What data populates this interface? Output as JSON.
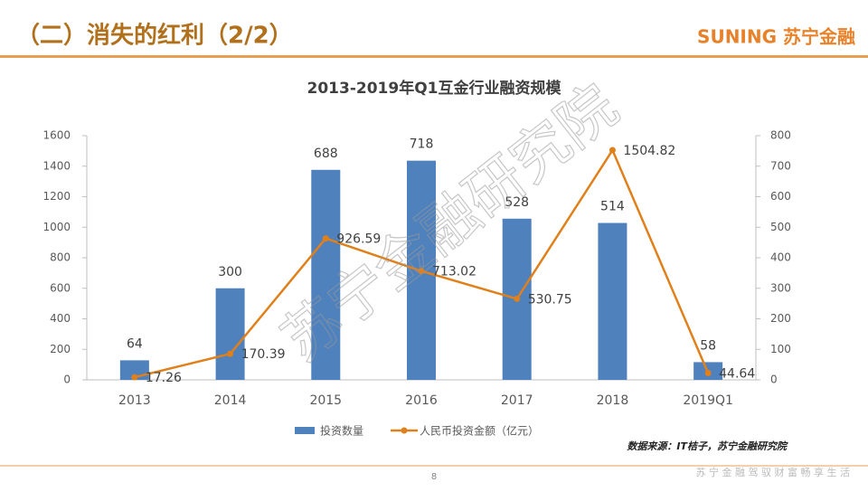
{
  "header": {
    "title": "（二）消失的红利（2/2）",
    "logo": "SUNING 苏宁金融"
  },
  "chart_data": {
    "type": "bar",
    "title": "2013-2019年Q1互金行业融资规模",
    "categories": [
      "2013",
      "2014",
      "2015",
      "2016",
      "2017",
      "2018",
      "2019Q1"
    ],
    "series": [
      {
        "name": "投资数量",
        "type": "bar",
        "axis": "y2",
        "color": "#4f81bd",
        "values": [
          64,
          300,
          688,
          718,
          528,
          514,
          58
        ]
      },
      {
        "name": "人民币投资金额（亿元）",
        "type": "line",
        "color": "#e0801a",
        "values": [
          17.26,
          170.39,
          926.59,
          713.02,
          530.75,
          1504.82,
          44.64
        ]
      }
    ],
    "ylim": [
      0,
      1600
    ],
    "yticks": [
      0,
      200,
      400,
      600,
      800,
      1000,
      1200,
      1400,
      1600
    ],
    "y2lim": [
      0,
      800
    ],
    "y2ticks": [
      0,
      100,
      200,
      300,
      400,
      500,
      600,
      700,
      800
    ],
    "grid": false,
    "legend": "bottom"
  },
  "watermark": "苏宁金融研究院",
  "footer": {
    "source": "数据来源：IT桔子，苏宁金融研究院",
    "page": "8",
    "slogan": "苏 宁 金 融   驾 驭 财 富   畅 享 生 活"
  }
}
